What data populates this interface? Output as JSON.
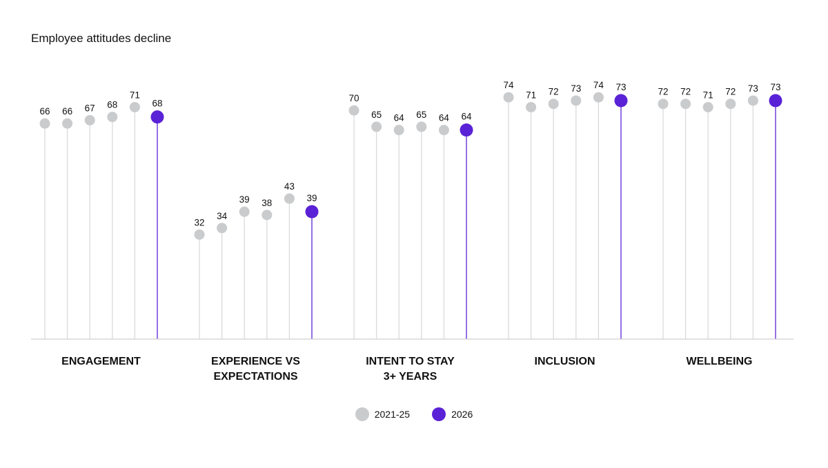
{
  "title": "Employee attitudes decline",
  "colors": {
    "past": "#c9cbcd",
    "current": "#5a22d6",
    "stem_past": "#d9dadc",
    "axis": "#cfd0d2"
  },
  "legend": [
    {
      "label": "2021-25",
      "color": "#c9cbcd"
    },
    {
      "label": "2026",
      "color": "#5a22d6"
    }
  ],
  "chart_data": {
    "type": "lollipop",
    "ylim": [
      0,
      100
    ],
    "grid": false,
    "legend_position": "bottom-center",
    "categories": [
      {
        "label_lines": [
          "ENGAGEMENT"
        ],
        "values": [
          66,
          66,
          67,
          68,
          71,
          68
        ]
      },
      {
        "label_lines": [
          "EXPERIENCE VS",
          "EXPECTATIONS"
        ],
        "values": [
          32,
          34,
          39,
          38,
          43,
          39
        ]
      },
      {
        "label_lines": [
          "INTENT TO STAY",
          "3+ YEARS"
        ],
        "values": [
          70,
          65,
          64,
          65,
          64,
          64
        ]
      },
      {
        "label_lines": [
          "INCLUSION"
        ],
        "values": [
          74,
          71,
          72,
          73,
          74,
          73
        ]
      },
      {
        "label_lines": [
          "WELLBEING"
        ],
        "values": [
          72,
          72,
          71,
          72,
          73,
          73
        ]
      }
    ],
    "series_note_last_point": "2026"
  }
}
